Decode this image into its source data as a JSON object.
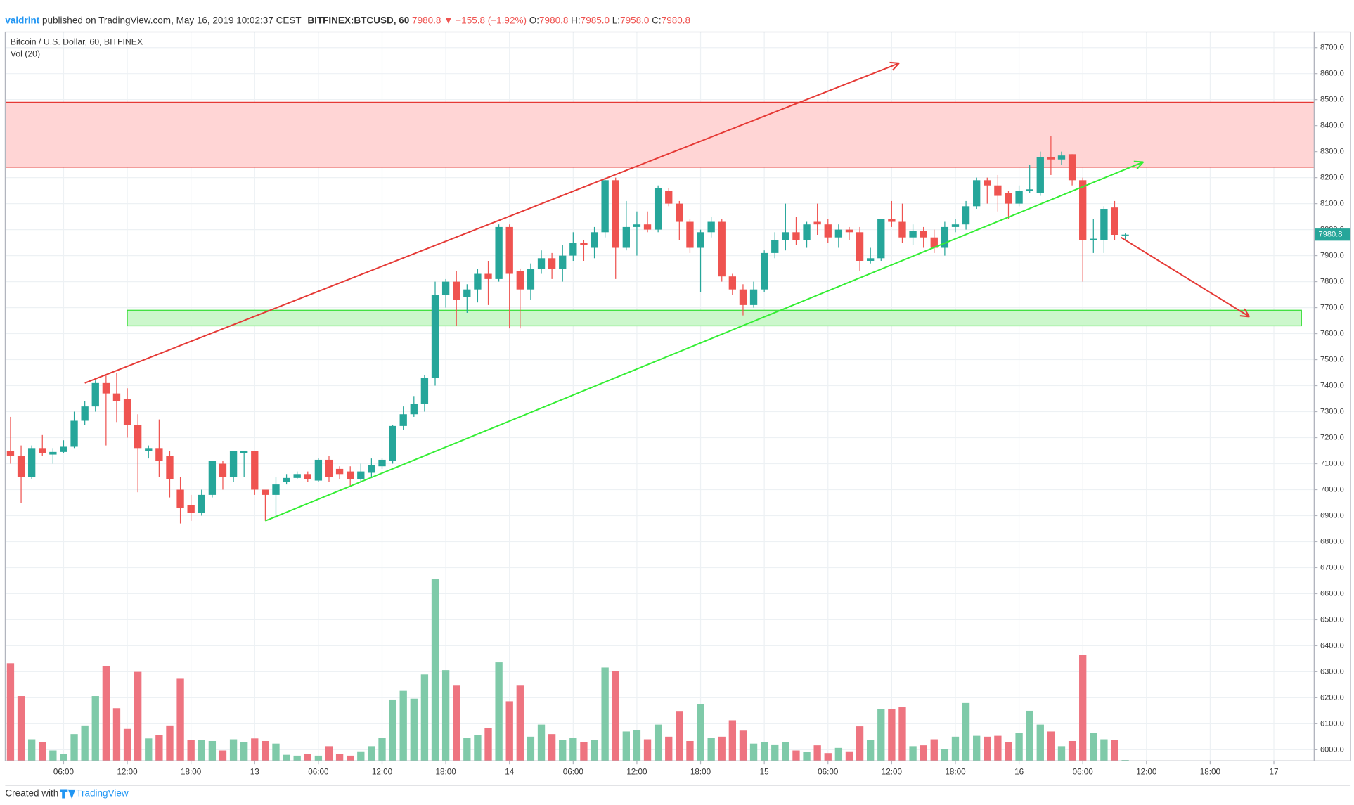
{
  "header": {
    "author": "valdrint",
    "published": "published on TradingView.com, May 16, 2019 10:02:37 CEST",
    "symbol": "BITFINEX:BTCUSD, 60",
    "last": "7980.8",
    "change": "▼ −155.8 (−1.92%)",
    "ohlc": [
      {
        "label": "O:",
        "value": "7980.8"
      },
      {
        "label": "H:",
        "value": "7985.0"
      },
      {
        "label": "L:",
        "value": "7958.0"
      },
      {
        "label": "C:",
        "value": "7980.8"
      }
    ]
  },
  "footer": {
    "text": "Created with",
    "brand": "TradingView"
  },
  "chart_data": {
    "type": "candlestick",
    "title": "Bitcoin / U.S. Dollar, 60, BITFINEX",
    "indicator": "Vol (20)",
    "up_color": "#26a69a",
    "down_color": "#ef5350",
    "volume_up_color": "#7fcaa9",
    "volume_down_color": "#ee7480",
    "grid": true,
    "open": [
      7150,
      7130,
      7050,
      7160,
      7135,
      7145,
      7165,
      7265,
      7320,
      7410,
      7370,
      7350,
      7250,
      7150,
      7160,
      7130,
      7000,
      6940,
      6910,
      6980,
      7100,
      7050,
      7140,
      7150,
      7000,
      6980,
      7030,
      7045,
      7060,
      7035,
      7115,
      7080,
      7070,
      7040,
      7065,
      7090,
      7110,
      7245,
      7290,
      7330,
      7430,
      7750,
      7800,
      7740,
      7770,
      7830,
      7810,
      8010,
      7840,
      7770,
      7850,
      7890,
      7850,
      7900,
      7950,
      7930,
      7990,
      8190,
      7930,
      8010,
      8020,
      8000,
      8150,
      8100,
      8030,
      7930,
      7990,
      8030,
      7820,
      7770,
      7710,
      7770,
      7910,
      7960,
      7990,
      7960,
      8030,
      8020,
      7970,
      8000,
      7990,
      7880,
      7890,
      8040,
      8030,
      7970,
      7995,
      7970,
      7930,
      8010,
      8020,
      8090,
      8190,
      8170,
      8140,
      8100,
      8150,
      8140,
      8280,
      8270,
      8290,
      8190,
      7960,
      7960,
      8085,
      7980.8
    ],
    "high": [
      7280,
      7170,
      7170,
      7210,
      7160,
      7190,
      7300,
      7340,
      7420,
      7440,
      7450,
      7390,
      7290,
      7170,
      7270,
      7150,
      7050,
      6980,
      7000,
      7110,
      7110,
      7150,
      7150,
      7150,
      7000,
      7050,
      7060,
      7070,
      7070,
      7120,
      7130,
      7090,
      7090,
      7100,
      7120,
      7120,
      7250,
      7320,
      7360,
      7440,
      7800,
      7810,
      7840,
      7790,
      7850,
      7880,
      8020,
      8020,
      7850,
      7870,
      7920,
      7910,
      7940,
      7990,
      7960,
      8010,
      8200,
      8200,
      8110,
      8070,
      8070,
      8170,
      8160,
      8110,
      8040,
      8000,
      8050,
      8040,
      7830,
      7790,
      7800,
      7920,
      7990,
      8100,
      8050,
      8030,
      8100,
      8040,
      8020,
      8010,
      8010,
      7930,
      8040,
      8110,
      8100,
      8020,
      8010,
      8000,
      8030,
      8040,
      8110,
      8200,
      8200,
      8210,
      8150,
      8170,
      8250,
      8300,
      8360,
      8300,
      8290,
      8200,
      8040,
      8090,
      8110,
      7985
    ],
    "low": [
      7100,
      6950,
      7040,
      7130,
      7100,
      7140,
      7160,
      7250,
      7300,
      7170,
      7260,
      7200,
      6990,
      7120,
      7050,
      6970,
      6870,
      6880,
      6900,
      6970,
      7000,
      7030,
      7050,
      6980,
      6880,
      6890,
      7020,
      7040,
      7030,
      7030,
      7030,
      7040,
      7010,
      7030,
      7050,
      7080,
      7100,
      7230,
      7280,
      7300,
      7400,
      7700,
      7630,
      7680,
      7720,
      7710,
      7800,
      7620,
      7620,
      7730,
      7830,
      7810,
      7800,
      7880,
      7880,
      7890,
      7970,
      7810,
      7920,
      7900,
      7990,
      7990,
      8090,
      7960,
      7910,
      7760,
      7970,
      7800,
      7750,
      7670,
      7700,
      7760,
      7890,
      7920,
      7940,
      7930,
      7980,
      7950,
      7930,
      7960,
      7840,
      7870,
      7880,
      8010,
      7950,
      7940,
      7930,
      7910,
      7900,
      7990,
      8000,
      8080,
      8100,
      8070,
      8040,
      8090,
      8140,
      8130,
      8210,
      8250,
      8170,
      7800,
      7910,
      7910,
      7960,
      7958
    ],
    "close": [
      7130,
      7050,
      7160,
      7140,
      7145,
      7165,
      7265,
      7320,
      7410,
      7370,
      7340,
      7250,
      7160,
      7160,
      7110,
      7040,
      6930,
      6910,
      6980,
      7110,
      7050,
      7150,
      7150,
      7000,
      6980,
      7020,
      7045,
      7060,
      7040,
      7115,
      7050,
      7060,
      7040,
      7070,
      7095,
      7115,
      7245,
      7290,
      7330,
      7430,
      7750,
      7800,
      7730,
      7770,
      7830,
      7810,
      8010,
      7830,
      7770,
      7850,
      7890,
      7850,
      7900,
      7950,
      7940,
      7990,
      8190,
      7930,
      8010,
      8020,
      8000,
      8160,
      8100,
      8030,
      7930,
      7990,
      8030,
      7820,
      7770,
      7710,
      7770,
      7910,
      7960,
      7990,
      7960,
      8020,
      8020,
      7970,
      8000,
      7990,
      7880,
      7890,
      8040,
      8030,
      7970,
      7995,
      7970,
      7930,
      8010,
      8020,
      8090,
      8190,
      8170,
      8130,
      8100,
      8150,
      8155,
      8280,
      8270,
      8285,
      8190,
      7960,
      7965,
      8080,
      7980,
      7980.8
    ],
    "volume": [
      113,
      75,
      25,
      22,
      12,
      8,
      31,
      41,
      75,
      110,
      61,
      37,
      103,
      26,
      30,
      41,
      95,
      24,
      24,
      23,
      12,
      25,
      22,
      26,
      23,
      20,
      7,
      6,
      8,
      6,
      17,
      8,
      6,
      11,
      17,
      27,
      71,
      81,
      72,
      100,
      210,
      105,
      87,
      27,
      30,
      38,
      114,
      69,
      87,
      28,
      42,
      31,
      24,
      27,
      22,
      24,
      108,
      104,
      34,
      36,
      25,
      42,
      28,
      57,
      23,
      66,
      27,
      28,
      47,
      35,
      20,
      22,
      19,
      22,
      12,
      10,
      18,
      9,
      15,
      11,
      40,
      24,
      60,
      60,
      62,
      17,
      18,
      25,
      14,
      28,
      67,
      29,
      28,
      29,
      22,
      32,
      58,
      42,
      34,
      17,
      23,
      123,
      32,
      25,
      24,
      1
    ],
    "xlim": [
      -0.5,
      122.8
    ],
    "xticks": [
      {
        "value": 5,
        "label": "06:00"
      },
      {
        "value": 11,
        "label": "12:00"
      },
      {
        "value": 17,
        "label": "18:00"
      },
      {
        "value": 23,
        "label": "13"
      },
      {
        "value": 29,
        "label": "06:00"
      },
      {
        "value": 35,
        "label": "12:00"
      },
      {
        "value": 41,
        "label": "18:00"
      },
      {
        "value": 47,
        "label": "14"
      },
      {
        "value": 53,
        "label": "06:00"
      },
      {
        "value": 59,
        "label": "12:00"
      },
      {
        "value": 65,
        "label": "18:00"
      },
      {
        "value": 71,
        "label": "15"
      },
      {
        "value": 77,
        "label": "06:00"
      },
      {
        "value": 83,
        "label": "12:00"
      },
      {
        "value": 89,
        "label": "18:00"
      },
      {
        "value": 95,
        "label": "16"
      },
      {
        "value": 101,
        "label": "06:00"
      },
      {
        "value": 107,
        "label": "12:00"
      },
      {
        "value": 113,
        "label": "18:00"
      },
      {
        "value": 119,
        "label": "17"
      }
    ],
    "ylim": [
      5957,
      8760
    ],
    "yticks": [
      {
        "value": 6000,
        "label": "6000.0"
      },
      {
        "value": 6100,
        "label": "6100.0"
      },
      {
        "value": 6200,
        "label": "6200.0"
      },
      {
        "value": 6300,
        "label": "6300.0"
      },
      {
        "value": 6400,
        "label": "6400.0"
      },
      {
        "value": 6500,
        "label": "6500.0"
      },
      {
        "value": 6600,
        "label": "6600.0"
      },
      {
        "value": 6700,
        "label": "6700.0"
      },
      {
        "value": 6800,
        "label": "6800.0"
      },
      {
        "value": 6900,
        "label": "6900.0"
      },
      {
        "value": 7000,
        "label": "7000.0"
      },
      {
        "value": 7100,
        "label": "7100.0"
      },
      {
        "value": 7200,
        "label": "7200.0"
      },
      {
        "value": 7300,
        "label": "7300.0"
      },
      {
        "value": 7400,
        "label": "7400.0"
      },
      {
        "value": 7500,
        "label": "7500.0"
      },
      {
        "value": 7600,
        "label": "7600.0"
      },
      {
        "value": 7700,
        "label": "7700.0"
      },
      {
        "value": 7800,
        "label": "7800.0"
      },
      {
        "value": 7900,
        "label": "7900.0"
      },
      {
        "value": 8000,
        "label": "8000.0"
      },
      {
        "value": 8100,
        "label": "8100.0"
      },
      {
        "value": 8200,
        "label": "8200.0"
      },
      {
        "value": 8300,
        "label": "8300.0"
      },
      {
        "value": 8400,
        "label": "8400.0"
      },
      {
        "value": 8500,
        "label": "8500.0"
      },
      {
        "value": 8600,
        "label": "8600.0"
      },
      {
        "value": 8700,
        "label": "8700.0"
      }
    ],
    "last_price": {
      "value": 7980.8,
      "label": "7980.8"
    },
    "zones": [
      {
        "color": "#ffd5d5",
        "border": "#e53935",
        "y": [
          8240,
          8490
        ]
      },
      {
        "color": "#ccf7cc",
        "border": "#33dd33",
        "y": [
          7630,
          7690
        ],
        "x": [
          11,
          121.6
        ]
      }
    ],
    "drawings": [
      {
        "color": "#e53935",
        "arrow": true,
        "x": [
          7,
          83.7
        ],
        "y": [
          7410,
          8640
        ]
      },
      {
        "color": "#33ee33",
        "arrow": true,
        "x": [
          24,
          106.7
        ],
        "y": [
          6880,
          8260
        ]
      },
      {
        "color": "#e53935",
        "arrow": true,
        "x": [
          104.6,
          116.7
        ],
        "y": [
          7970,
          7665
        ]
      }
    ]
  }
}
